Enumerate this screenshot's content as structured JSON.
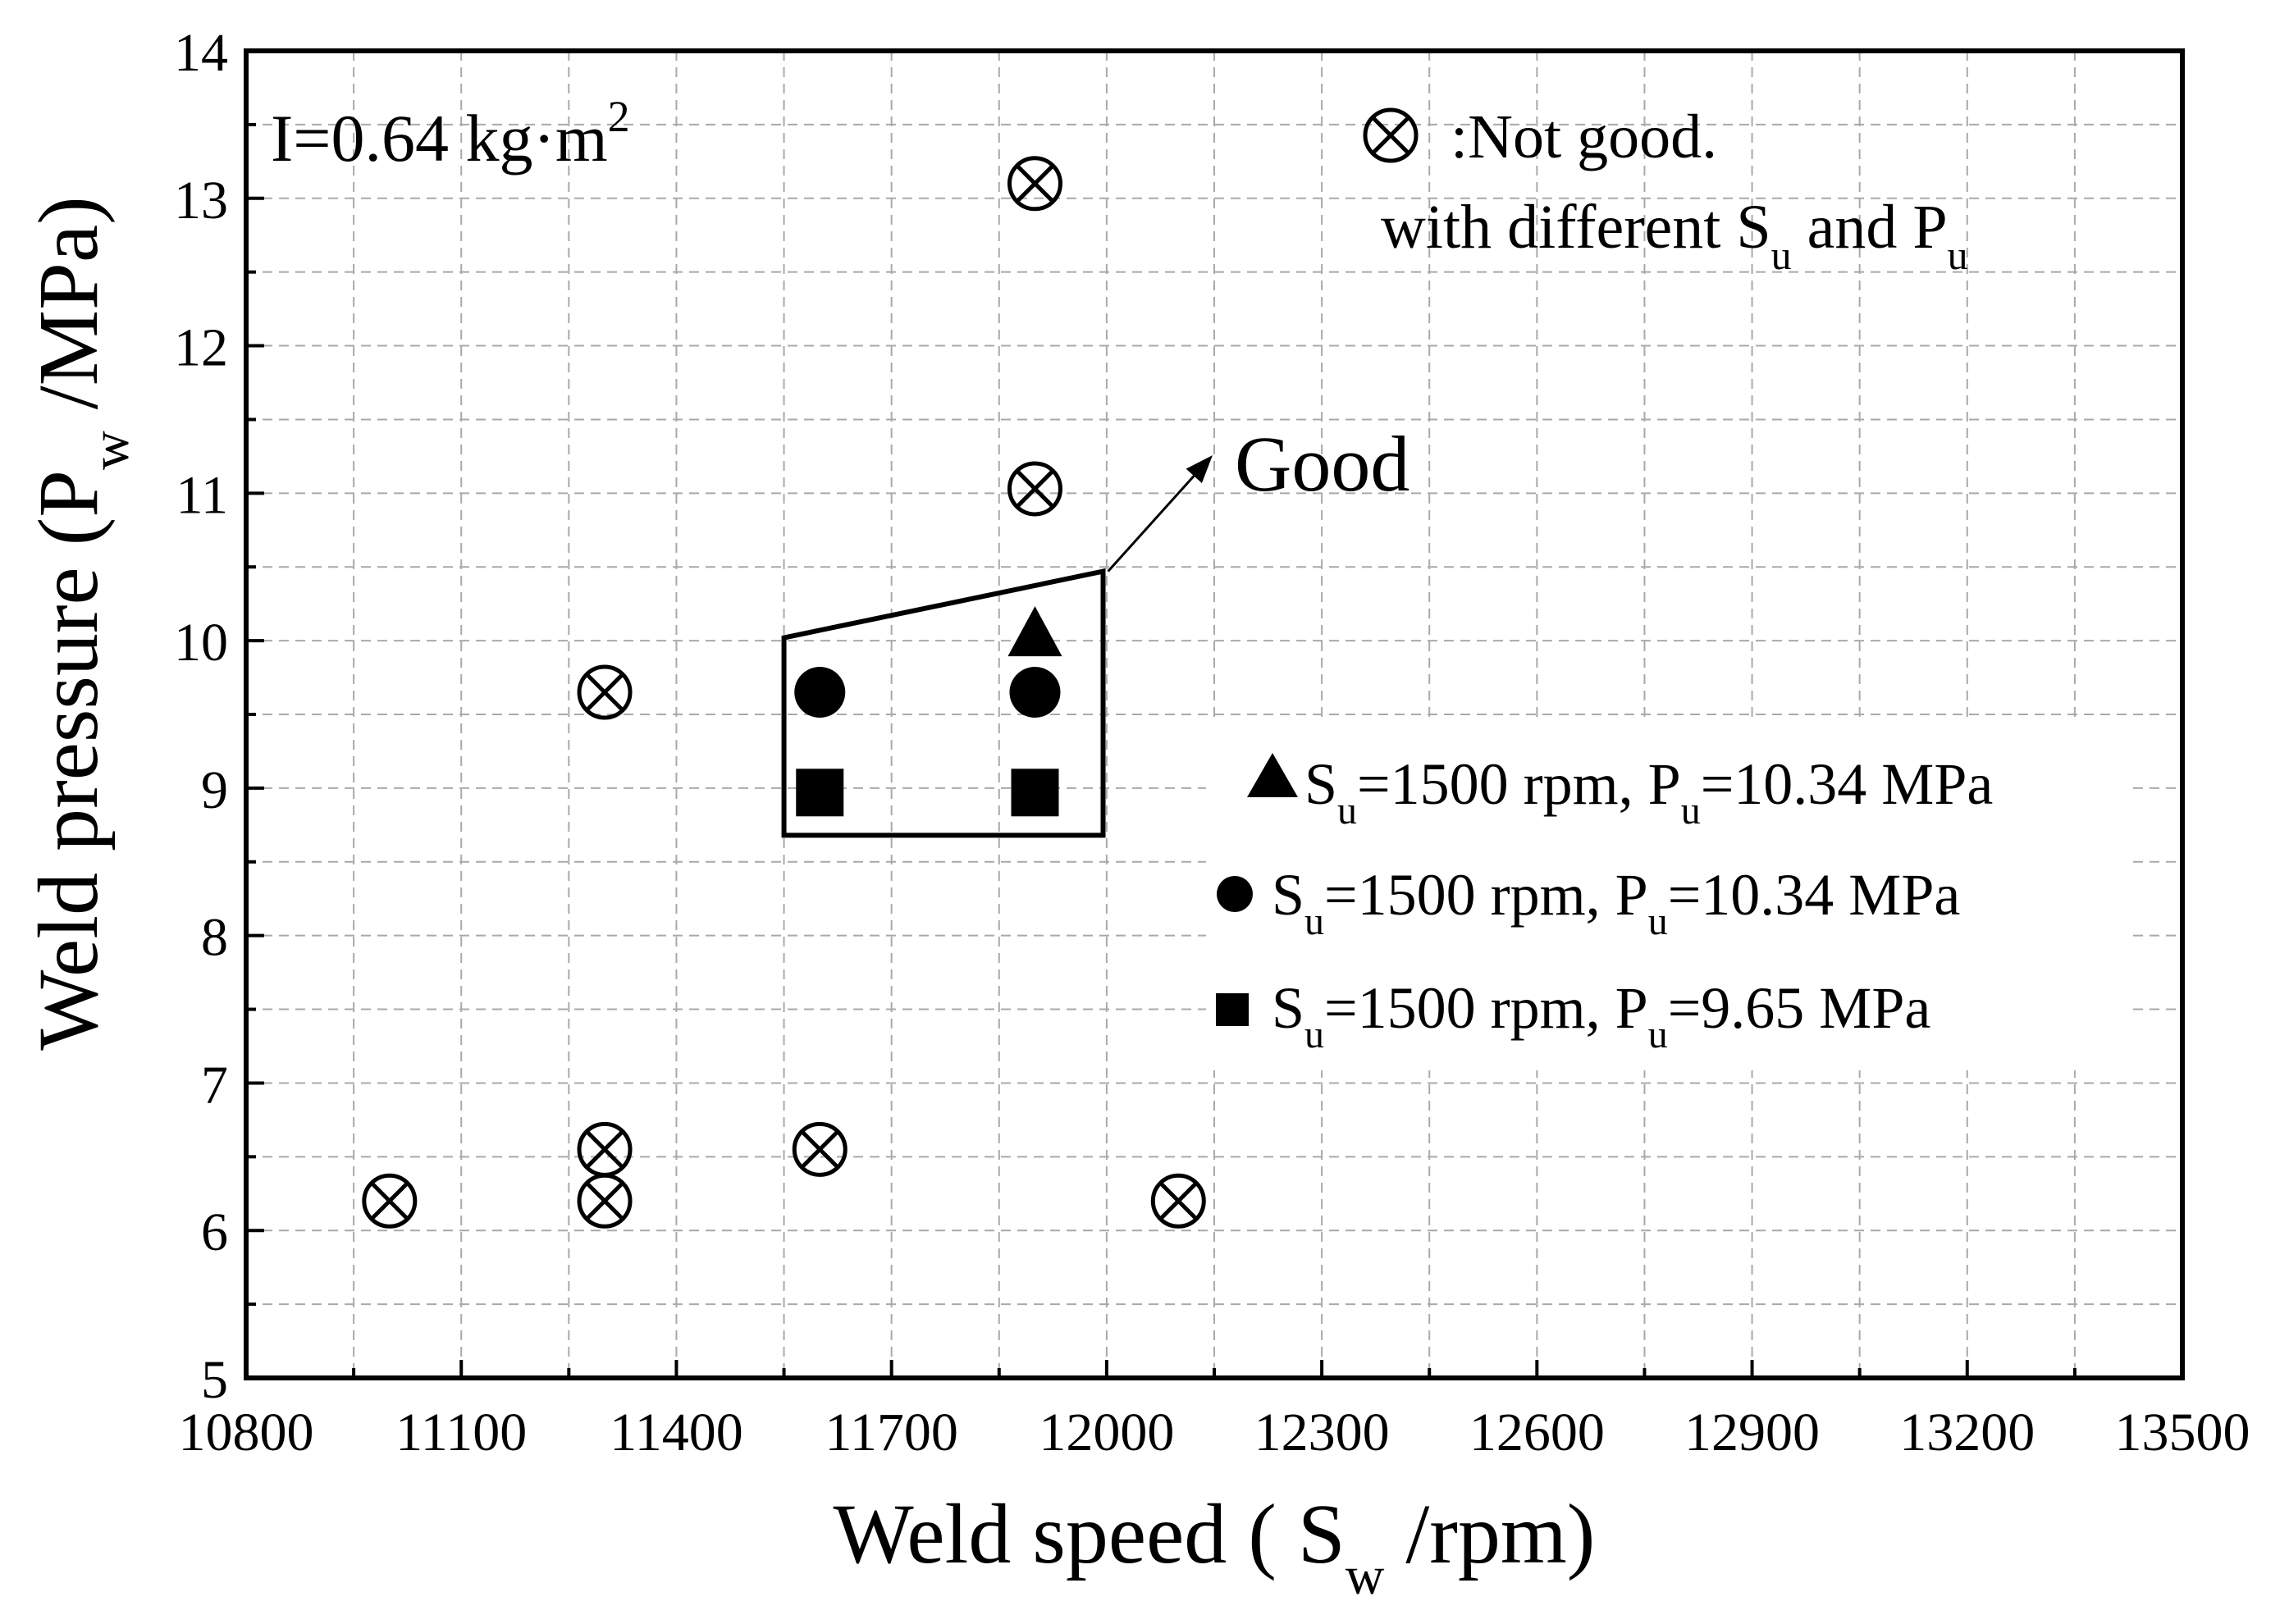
{
  "chart_data": {
    "type": "scatter",
    "title": "",
    "xlabel": {
      "prefix": "Weld speed ( S",
      "sub": "w",
      "suffix": " /rpm)"
    },
    "ylabel": {
      "prefix": "Weld pressure (P",
      "sub": "w",
      "suffix": " /MPa)"
    },
    "xlim": [
      10800,
      13500
    ],
    "ylim": [
      5,
      14
    ],
    "xticks": [
      10800,
      11100,
      11400,
      11700,
      12000,
      12300,
      12600,
      12900,
      13200,
      13500
    ],
    "yticks": [
      5,
      6,
      7,
      8,
      9,
      10,
      11,
      12,
      13,
      14
    ],
    "grid": true,
    "inertia_label": {
      "prefix": "I=0.64 kg·m",
      "sup": "2"
    },
    "not_good_legend": {
      "line1": ":Not good.",
      "line2_prefix": "with different S",
      "line2_sub1": "u",
      "line2_mid": " and P",
      "line2_sub2": "u"
    },
    "good_label": "Good",
    "good_region": [
      [
        11550,
        10.02
      ],
      [
        11995,
        10.47
      ],
      [
        11995,
        8.68
      ],
      [
        11550,
        8.68
      ]
    ],
    "series": [
      {
        "name": "Not good",
        "marker": "circle-x",
        "points": [
          [
            11000,
            6.2
          ],
          [
            11300,
            6.2
          ],
          [
            11300,
            6.55
          ],
          [
            11300,
            9.65
          ],
          [
            11600,
            6.55
          ],
          [
            11900,
            11.03
          ],
          [
            11900,
            13.1
          ],
          [
            12100,
            6.2
          ]
        ]
      },
      {
        "name": "S_u=1500 rpm, P_u=10.34 MPa",
        "marker": "triangle",
        "points": [
          [
            11900,
            10.05
          ]
        ],
        "legend": {
          "s": "S",
          "s_sub": "u",
          "mid": "=1500 rpm, P",
          "p_sub": "u",
          "tail": "=10.34 MPa"
        }
      },
      {
        "name": "S_u=1500 rpm, P_u=10.34 MPa",
        "marker": "circle",
        "points": [
          [
            11600,
            9.65
          ],
          [
            11900,
            9.65
          ]
        ],
        "legend": {
          "s": "S",
          "s_sub": "u",
          "mid": "=1500 rpm, P",
          "p_sub": "u",
          "tail": "=10.34 MPa"
        }
      },
      {
        "name": "S_u=1500 rpm, P_u=9.65 MPa",
        "marker": "square",
        "points": [
          [
            11600,
            8.97
          ],
          [
            11900,
            8.97
          ]
        ],
        "legend": {
          "s": "S",
          "s_sub": "u",
          "mid": "=1500 rpm, P",
          "p_sub": "u",
          "tail": "=9.65 MPa"
        }
      }
    ]
  }
}
